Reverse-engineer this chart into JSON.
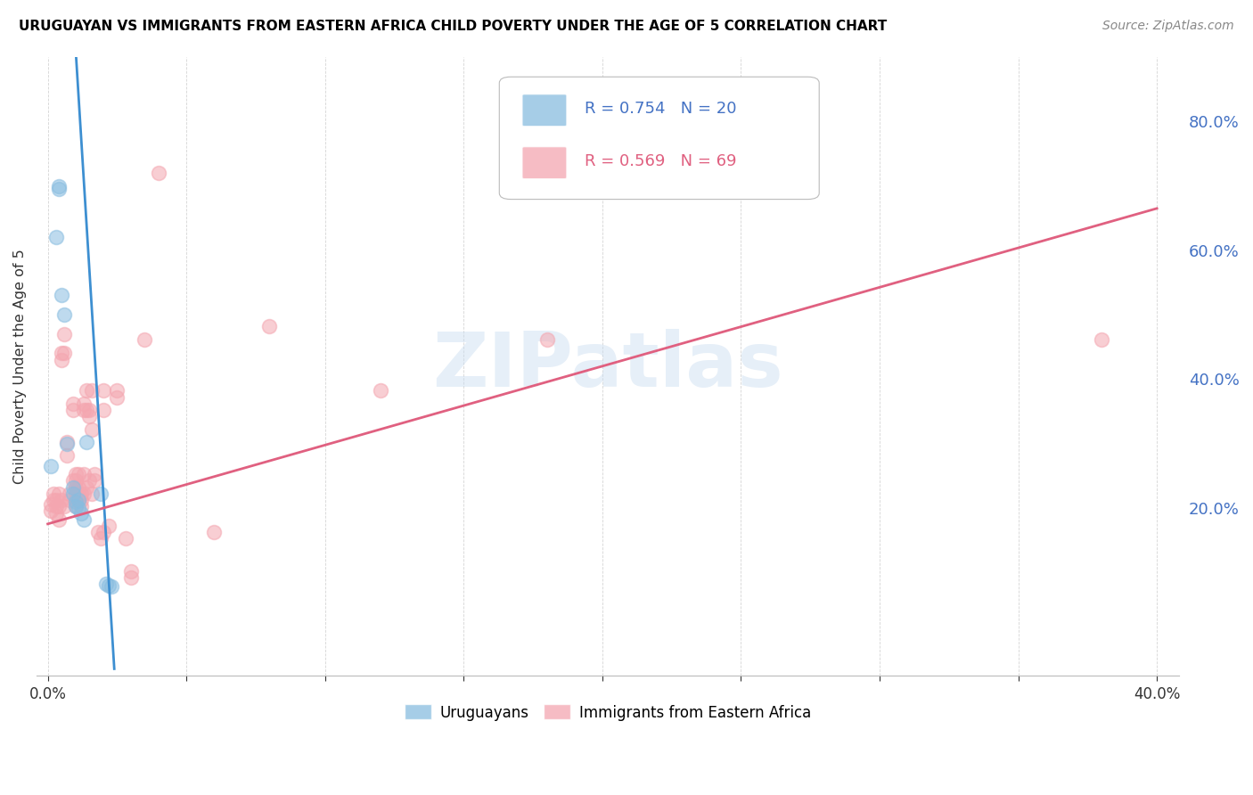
{
  "title": "URUGUAYAN VS IMMIGRANTS FROM EASTERN AFRICA CHILD POVERTY UNDER THE AGE OF 5 CORRELATION CHART",
  "source": "Source: ZipAtlas.com",
  "ylabel": "Child Poverty Under the Age of 5",
  "right_ytick_vals": [
    0.2,
    0.4,
    0.6,
    0.8
  ],
  "uruguayan_color": "#89bde0",
  "eastern_africa_color": "#f4a6b0",
  "line_blue": "#3d8fd1",
  "line_pink": "#e06080",
  "watermark_text": "ZIPatlas",
  "uruguayan_points": [
    [
      0.001,
      0.265
    ],
    [
      0.003,
      0.62
    ],
    [
      0.004,
      0.7
    ],
    [
      0.004,
      0.695
    ],
    [
      0.005,
      0.53
    ],
    [
      0.006,
      0.5
    ],
    [
      0.007,
      0.3
    ],
    [
      0.009,
      0.232
    ],
    [
      0.009,
      0.222
    ],
    [
      0.01,
      0.21
    ],
    [
      0.01,
      0.202
    ],
    [
      0.011,
      0.212
    ],
    [
      0.011,
      0.2
    ],
    [
      0.012,
      0.192
    ],
    [
      0.013,
      0.182
    ],
    [
      0.014,
      0.302
    ],
    [
      0.019,
      0.222
    ],
    [
      0.021,
      0.082
    ],
    [
      0.022,
      0.079
    ],
    [
      0.023,
      0.078
    ]
  ],
  "eastern_africa_points": [
    [
      0.001,
      0.205
    ],
    [
      0.001,
      0.195
    ],
    [
      0.002,
      0.222
    ],
    [
      0.002,
      0.212
    ],
    [
      0.003,
      0.202
    ],
    [
      0.003,
      0.192
    ],
    [
      0.003,
      0.212
    ],
    [
      0.004,
      0.222
    ],
    [
      0.004,
      0.202
    ],
    [
      0.004,
      0.182
    ],
    [
      0.005,
      0.44
    ],
    [
      0.005,
      0.43
    ],
    [
      0.005,
      0.212
    ],
    [
      0.006,
      0.47
    ],
    [
      0.006,
      0.44
    ],
    [
      0.006,
      0.202
    ],
    [
      0.007,
      0.302
    ],
    [
      0.007,
      0.282
    ],
    [
      0.008,
      0.212
    ],
    [
      0.008,
      0.222
    ],
    [
      0.009,
      0.362
    ],
    [
      0.009,
      0.352
    ],
    [
      0.009,
      0.242
    ],
    [
      0.01,
      0.252
    ],
    [
      0.01,
      0.242
    ],
    [
      0.01,
      0.232
    ],
    [
      0.01,
      0.222
    ],
    [
      0.01,
      0.212
    ],
    [
      0.01,
      0.202
    ],
    [
      0.011,
      0.252
    ],
    [
      0.011,
      0.232
    ],
    [
      0.011,
      0.222
    ],
    [
      0.011,
      0.212
    ],
    [
      0.012,
      0.222
    ],
    [
      0.012,
      0.212
    ],
    [
      0.012,
      0.202
    ],
    [
      0.013,
      0.362
    ],
    [
      0.013,
      0.352
    ],
    [
      0.013,
      0.252
    ],
    [
      0.013,
      0.222
    ],
    [
      0.014,
      0.382
    ],
    [
      0.014,
      0.352
    ],
    [
      0.014,
      0.232
    ],
    [
      0.015,
      0.352
    ],
    [
      0.015,
      0.342
    ],
    [
      0.015,
      0.242
    ],
    [
      0.016,
      0.382
    ],
    [
      0.016,
      0.322
    ],
    [
      0.016,
      0.222
    ],
    [
      0.017,
      0.252
    ],
    [
      0.017,
      0.242
    ],
    [
      0.018,
      0.162
    ],
    [
      0.019,
      0.152
    ],
    [
      0.02,
      0.382
    ],
    [
      0.02,
      0.352
    ],
    [
      0.02,
      0.162
    ],
    [
      0.022,
      0.172
    ],
    [
      0.025,
      0.382
    ],
    [
      0.025,
      0.372
    ],
    [
      0.028,
      0.152
    ],
    [
      0.03,
      0.102
    ],
    [
      0.03,
      0.092
    ],
    [
      0.035,
      0.462
    ],
    [
      0.04,
      0.72
    ],
    [
      0.06,
      0.162
    ],
    [
      0.08,
      0.482
    ],
    [
      0.12,
      0.382
    ],
    [
      0.18,
      0.462
    ],
    [
      0.38,
      0.462
    ]
  ],
  "blue_line_x": [
    0.0085,
    0.024
  ],
  "blue_line_y": [
    1.02,
    -0.05
  ],
  "pink_line_x": [
    0.0,
    0.4
  ],
  "pink_line_y": [
    0.175,
    0.665
  ],
  "xlim": [
    -0.004,
    0.408
  ],
  "ylim": [
    -0.06,
    0.9
  ],
  "x_ticks_shown": [
    0.0,
    0.4
  ],
  "x_tick_labels": [
    "0.0%",
    "40.0%"
  ],
  "figsize": [
    14.06,
    8.92
  ],
  "dpi": 100
}
